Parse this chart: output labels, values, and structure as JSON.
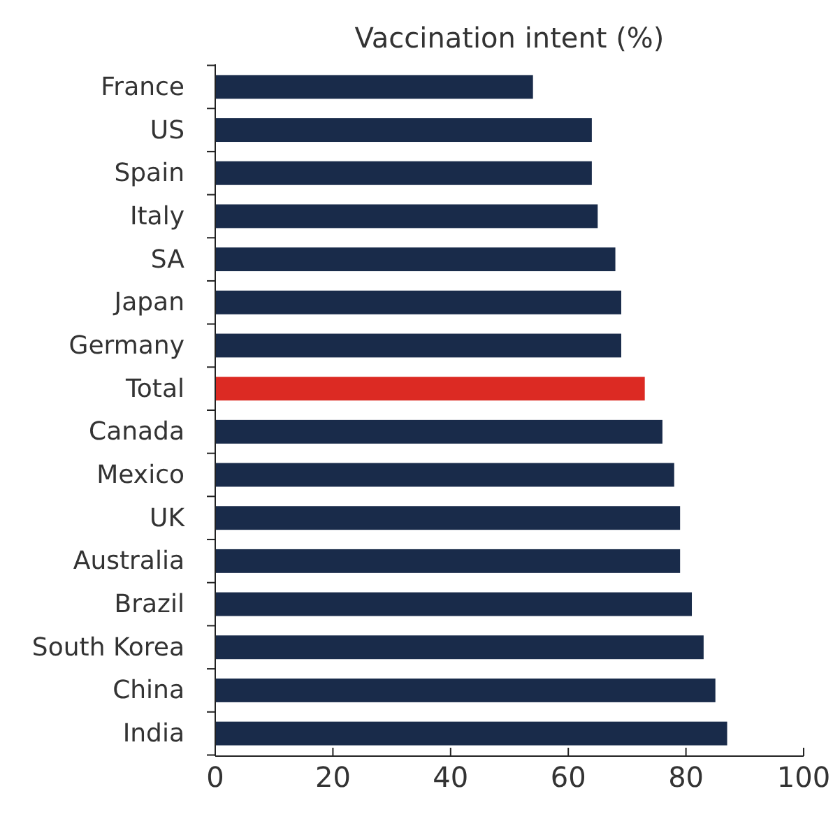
{
  "chart_data": {
    "type": "bar",
    "orientation": "horizontal",
    "title": "Vaccination intent (%)",
    "categories": [
      "France",
      "US",
      "Spain",
      "Italy",
      "SA",
      "Japan",
      "Germany",
      "Total",
      "Canada",
      "Mexico",
      "UK",
      "Australia",
      "Brazil",
      "South Korea",
      "China",
      "India"
    ],
    "values": [
      54,
      64,
      64,
      65,
      68,
      69,
      69,
      73,
      76,
      78,
      79,
      79,
      81,
      83,
      85,
      87
    ],
    "colors": [
      "#192b4a",
      "#192b4a",
      "#192b4a",
      "#192b4a",
      "#192b4a",
      "#192b4a",
      "#192b4a",
      "#dc2a23",
      "#192b4a",
      "#192b4a",
      "#192b4a",
      "#192b4a",
      "#192b4a",
      "#192b4a",
      "#192b4a",
      "#192b4a"
    ],
    "xlim": [
      0,
      100
    ],
    "xticks": [
      0,
      20,
      40,
      60,
      80,
      100
    ],
    "grid": false
  }
}
